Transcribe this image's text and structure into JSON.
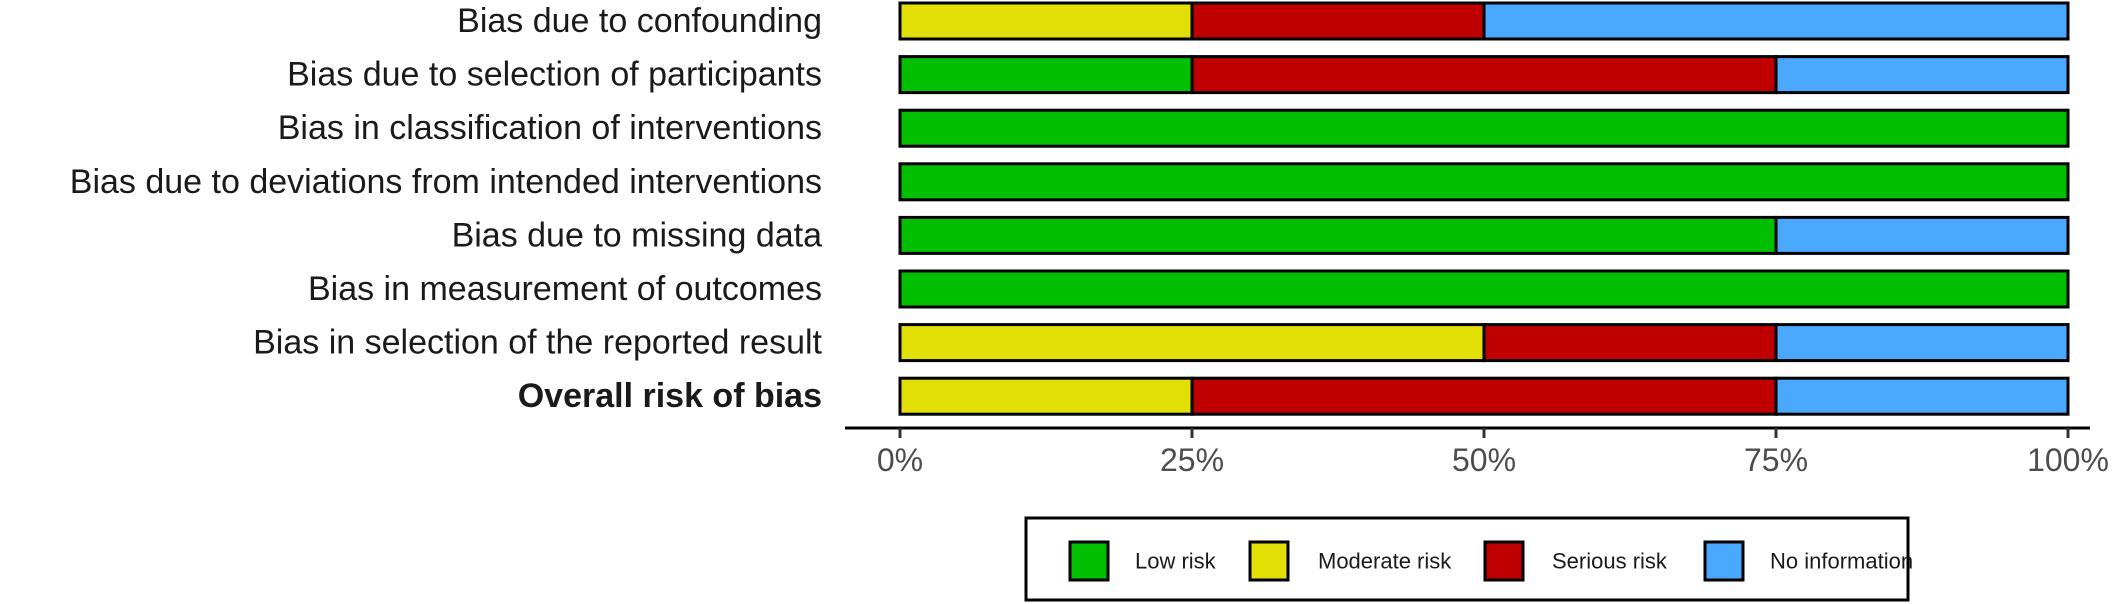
{
  "chart_data": {
    "type": "bar",
    "orientation": "horizontal",
    "stacked": true,
    "categories": [
      "Bias due to confounding",
      "Bias due to selection of participants",
      "Bias in classification of interventions",
      "Bias due to deviations from intended interventions",
      "Bias due to missing data",
      "Bias in measurement of outcomes",
      "Bias in selection of the reported result",
      "Overall risk of bias"
    ],
    "series": [
      {
        "name": "Low risk",
        "color": "#02bf02",
        "values": [
          0,
          25,
          100,
          100,
          75,
          100,
          0,
          0
        ]
      },
      {
        "name": "Moderate risk",
        "color": "#e2df07",
        "values": [
          25,
          0,
          0,
          0,
          0,
          0,
          50,
          25
        ]
      },
      {
        "name": "Serious risk",
        "color": "#bf0000",
        "values": [
          25,
          50,
          0,
          0,
          0,
          0,
          25,
          50
        ]
      },
      {
        "name": "No information",
        "color": "#4aa8ff",
        "values": [
          50,
          25,
          0,
          0,
          25,
          0,
          25,
          25
        ]
      }
    ],
    "xlim": [
      0,
      100
    ],
    "x_ticks": [
      0,
      25,
      50,
      75,
      100
    ],
    "x_tick_labels": [
      "0%",
      "25%",
      "50%",
      "75%",
      "100%"
    ],
    "bold_category": "Overall risk of bias",
    "legend_position": "bottom",
    "grid": false
  }
}
